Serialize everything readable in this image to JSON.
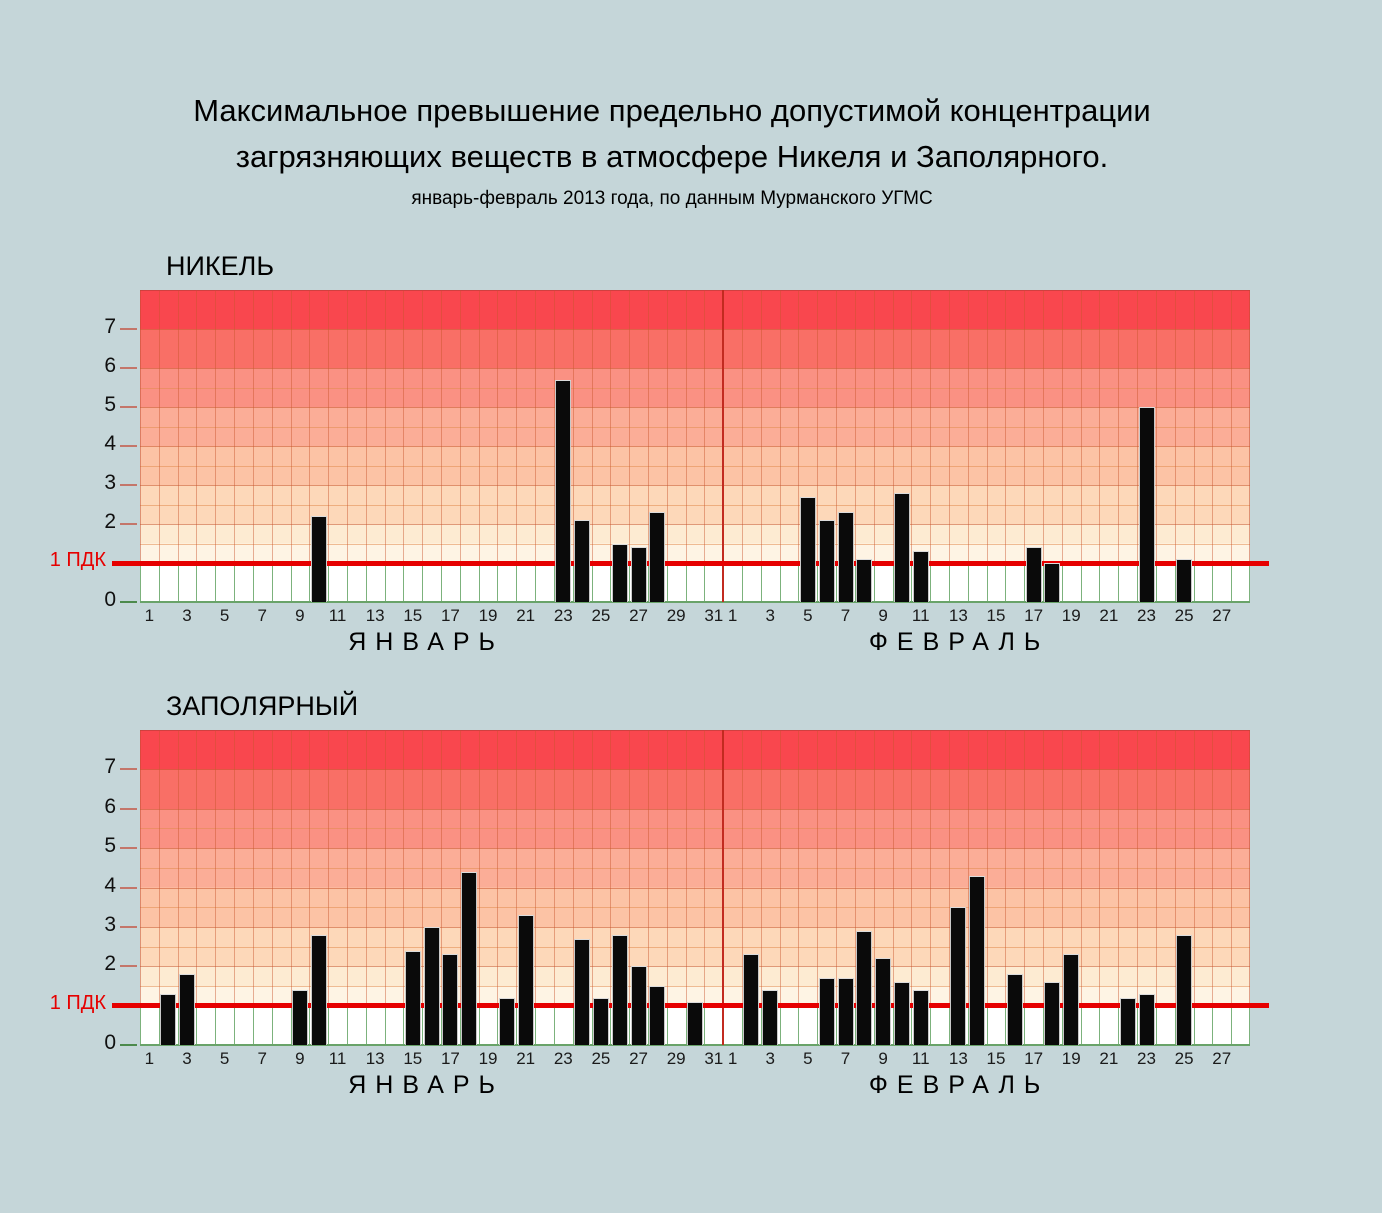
{
  "page": {
    "title_line1": "Максимальное превышение предельно допустимой концентрации",
    "title_line2": "загрязняющих веществ в атмосфере Никеля и Заполярного.",
    "subtitle": "январь-февраль 2013 года, по данным Мурманского УГМС"
  },
  "chart_data": [
    {
      "type": "bar",
      "title": "НИКЕЛЬ",
      "ylim": [
        0,
        8
      ],
      "yticks": [
        0,
        2,
        3,
        4,
        5,
        6,
        7
      ],
      "grid": "horizontal lines every 0.5, vertical line per day",
      "legend_position": "none",
      "threshold": {
        "value": 1,
        "label": "1 ПДК"
      },
      "months": [
        {
          "label": "ЯНВАРЬ",
          "days_in_month": 31,
          "xticks": [
            1,
            3,
            5,
            7,
            9,
            11,
            13,
            15,
            17,
            19,
            21,
            23,
            25,
            27,
            29,
            31
          ],
          "values": {
            "10": 2.2,
            "23": 5.7,
            "24": 2.1,
            "26": 1.5,
            "27": 1.4,
            "28": 2.3
          }
        },
        {
          "label": "ФЕВРАЛЬ",
          "days_in_month": 28,
          "xticks": [
            1,
            3,
            5,
            7,
            9,
            11,
            13,
            15,
            17,
            19,
            21,
            23,
            25,
            27
          ],
          "values": {
            "5": 2.7,
            "6": 2.1,
            "7": 2.3,
            "8": 1.1,
            "10": 2.8,
            "11": 1.3,
            "17": 1.4,
            "18": 1.0,
            "23": 5.0,
            "25": 1.1
          }
        }
      ]
    },
    {
      "type": "bar",
      "title": "ЗАПОЛЯРНЫЙ",
      "ylim": [
        0,
        8
      ],
      "yticks": [
        0,
        2,
        3,
        4,
        5,
        6,
        7
      ],
      "grid": "horizontal lines every 0.5, vertical line per day",
      "legend_position": "none",
      "threshold": {
        "value": 1,
        "label": "1 ПДК"
      },
      "months": [
        {
          "label": "ЯНВАРЬ",
          "days_in_month": 31,
          "xticks": [
            1,
            3,
            5,
            7,
            9,
            11,
            13,
            15,
            17,
            19,
            21,
            23,
            25,
            27,
            29,
            31
          ],
          "values": {
            "2": 1.3,
            "3": 1.8,
            "9": 1.4,
            "10": 2.8,
            "15": 2.4,
            "16": 3.0,
            "17": 2.3,
            "18": 4.4,
            "20": 1.2,
            "21": 3.3,
            "24": 2.7,
            "25": 1.2,
            "26": 2.8,
            "27": 2.0,
            "28": 1.5,
            "30": 1.1
          }
        },
        {
          "label": "ФЕВРАЛЬ",
          "days_in_month": 28,
          "xticks": [
            1,
            3,
            5,
            7,
            9,
            11,
            13,
            15,
            17,
            19,
            21,
            23,
            25,
            27
          ],
          "values": {
            "2": 2.3,
            "3": 1.4,
            "6": 1.7,
            "7": 1.7,
            "8": 2.9,
            "9": 2.2,
            "10": 1.6,
            "11": 1.4,
            "13": 3.5,
            "14": 4.3,
            "16": 1.8,
            "18": 1.6,
            "19": 2.3,
            "22": 1.2,
            "23": 1.3,
            "25": 2.8
          }
        }
      ]
    }
  ],
  "style": {
    "background": "#C5D6D9",
    "bar_color": "#0A0A0A",
    "bar_edge": "#DCDCDC",
    "threshold_red": "#E60000",
    "divider_red": "#C22B20",
    "grid_major": "rgba(200,85,45,0.55)",
    "grid_minor": "rgba(225,140,80,0.55)",
    "vline_upper": "rgba(200,85,45,0.45)",
    "vline_lower": "#7CB27C",
    "plot_top_edge": "#D04040",
    "plot_side_edge": "rgba(190,75,45,0.5)",
    "plot_bottom_edge": "#69A369",
    "tick_dash": "#C4766A",
    "tick_dash_zero": "#4C8A4C",
    "bands": [
      {
        "from": 0,
        "to": 1,
        "color": "#FFFFFF"
      },
      {
        "from": 1,
        "to": 1.5,
        "color": "#FEF4E4"
      },
      {
        "from": 1.5,
        "to": 2,
        "color": "#FDEBD2"
      },
      {
        "from": 2,
        "to": 3,
        "color": "#FDD8B9"
      },
      {
        "from": 3,
        "to": 4,
        "color": "#FCC3A5"
      },
      {
        "from": 4,
        "to": 5,
        "color": "#FBAD97"
      },
      {
        "from": 5,
        "to": 6,
        "color": "#FA9183"
      },
      {
        "from": 6,
        "to": 7,
        "color": "#F96F66"
      },
      {
        "from": 7,
        "to": 8,
        "color": "#F9474E"
      }
    ]
  }
}
